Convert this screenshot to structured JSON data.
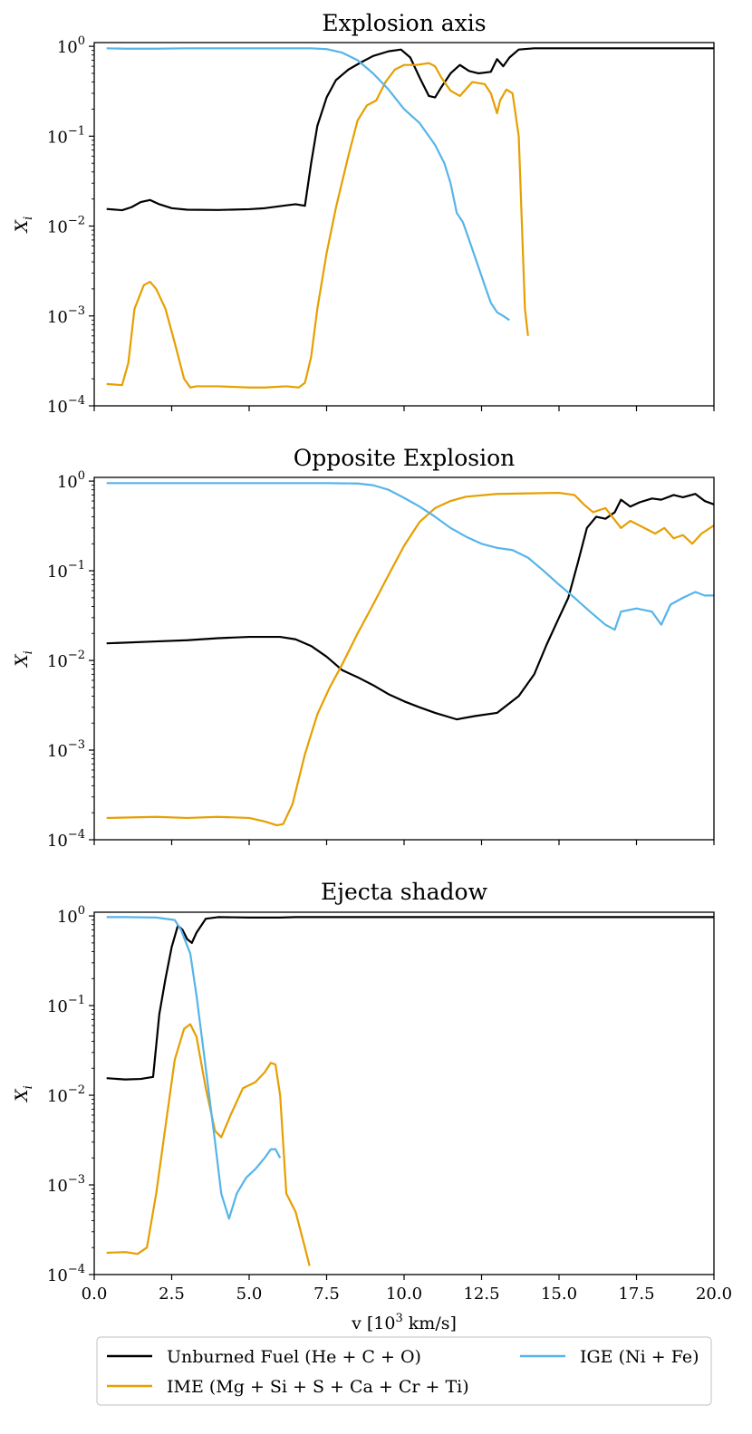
{
  "chart_data": {
    "type": "line",
    "x_axis_label_parts": {
      "base": "v [10",
      "sup": "3",
      "rest": " km/s]"
    },
    "y_axis_label": {
      "base": "X",
      "sub": "i"
    },
    "xlim": [
      0,
      20
    ],
    "ylim": [
      0.0001,
      1.1
    ],
    "yscale": "log",
    "x_ticks": [
      0,
      2.5,
      5,
      7.5,
      10,
      12.5,
      15,
      17.5,
      20
    ],
    "x_tick_labels": [
      "0.0",
      "2.5",
      "5.0",
      "7.5",
      "10.0",
      "12.5",
      "15.0",
      "17.5",
      "20.0"
    ],
    "y_ticks": [
      0.0001,
      0.001,
      0.01,
      0.1,
      1
    ],
    "y_tick_labels": [
      {
        "base": "10",
        "sup": "−4"
      },
      {
        "base": "10",
        "sup": "−3"
      },
      {
        "base": "10",
        "sup": "−2"
      },
      {
        "base": "10",
        "sup": "−1"
      },
      {
        "base": "10",
        "sup": "0"
      }
    ],
    "legend": {
      "placement": "bottom-center",
      "columns": 2,
      "entries": [
        {
          "label": "Unburned Fuel (He + C + O)",
          "color": "#000000"
        },
        {
          "label": "IME (Mg + Si + S + Ca + Cr + Ti)",
          "color": "#E69F00"
        },
        {
          "label": "IGE (Ni + Fe)",
          "color": "#56B4E9"
        }
      ]
    },
    "panels": [
      {
        "title": "Explosion axis",
        "series": [
          {
            "name": "Unburned Fuel (He + C + O)",
            "color": "#000000",
            "x": [
              0.4,
              0.9,
              1.2,
              1.5,
              1.8,
              2.1,
              2.5,
              3,
              4,
              5,
              5.5,
              6.2,
              6.5,
              6.8,
              7.0,
              7.2,
              7.5,
              7.8,
              8.2,
              8.6,
              9.0,
              9.5,
              9.9,
              10.2,
              10.5,
              10.8,
              11.0,
              11.2,
              11.5,
              11.8,
              12.1,
              12.4,
              12.8,
              13.0,
              13.2,
              13.4,
              13.7,
              14.2,
              15,
              16,
              18,
              20
            ],
            "y": [
              0.0155,
              0.015,
              0.0162,
              0.0185,
              0.0195,
              0.0175,
              0.0158,
              0.0152,
              0.0151,
              0.0154,
              0.0158,
              0.017,
              0.0175,
              0.0168,
              0.05,
              0.13,
              0.27,
              0.42,
              0.55,
              0.66,
              0.78,
              0.88,
              0.92,
              0.75,
              0.45,
              0.28,
              0.27,
              0.35,
              0.5,
              0.62,
              0.53,
              0.5,
              0.52,
              0.72,
              0.6,
              0.75,
              0.92,
              0.95,
              0.95,
              0.95,
              0.95,
              0.95
            ]
          },
          {
            "name": "IME (Mg + Si + S + Ca + Cr + Ti)",
            "color": "#E69F00",
            "x": [
              0.4,
              0.9,
              1.1,
              1.3,
              1.6,
              1.8,
              2.0,
              2.3,
              2.6,
              2.9,
              3.1,
              3.3,
              4.0,
              5.0,
              5.5,
              6.2,
              6.6,
              6.8,
              7.0,
              7.2,
              7.5,
              7.8,
              8.2,
              8.5,
              8.8,
              9.1,
              9.4,
              9.7,
              10.0,
              10.4,
              10.8,
              11.0,
              11.2,
              11.5,
              11.8,
              12.2,
              12.6,
              12.8,
              13.0,
              13.1,
              13.3,
              13.5,
              13.7,
              13.9,
              14.0
            ],
            "y": [
              0.000175,
              0.00017,
              0.0003,
              0.0012,
              0.0022,
              0.0024,
              0.002,
              0.0012,
              0.0005,
              0.0002,
              0.00016,
              0.000165,
              0.000165,
              0.00016,
              0.00016,
              0.000165,
              0.00016,
              0.00018,
              0.00035,
              0.0012,
              0.005,
              0.016,
              0.06,
              0.15,
              0.22,
              0.25,
              0.4,
              0.55,
              0.62,
              0.62,
              0.65,
              0.6,
              0.45,
              0.32,
              0.28,
              0.4,
              0.38,
              0.3,
              0.18,
              0.25,
              0.33,
              0.3,
              0.1,
              0.0012,
              0.0006
            ]
          },
          {
            "name": "IGE (Ni + Fe)",
            "color": "#56B4E9",
            "x": [
              0.4,
              1,
              2,
              3,
              4,
              5,
              6,
              7,
              7.5,
              8,
              8.5,
              9,
              9.5,
              10,
              10.5,
              11,
              11.3,
              11.5,
              11.7,
              11.9,
              12.1,
              12.4,
              12.6,
              12.8,
              13.0,
              13.2,
              13.4
            ],
            "y": [
              0.95,
              0.94,
              0.94,
              0.95,
              0.95,
              0.95,
              0.95,
              0.95,
              0.93,
              0.85,
              0.7,
              0.5,
              0.33,
              0.2,
              0.14,
              0.08,
              0.05,
              0.03,
              0.014,
              0.011,
              0.007,
              0.0035,
              0.0022,
              0.0014,
              0.0011,
              0.001,
              0.0009
            ]
          }
        ]
      },
      {
        "title": "Opposite Explosion",
        "series": [
          {
            "name": "Unburned Fuel (He + C + O)",
            "color": "#000000",
            "x": [
              0.4,
              2,
              3,
              4,
              5,
              6,
              6.5,
              7,
              7.5,
              8,
              8.5,
              9,
              9.5,
              10,
              10.5,
              11,
              11.7,
              12.3,
              13,
              13.7,
              14.2,
              14.6,
              15,
              15.3,
              15.6,
              15.9,
              16.2,
              16.5,
              16.8,
              17.0,
              17.3,
              17.6,
              18.0,
              18.3,
              18.7,
              19.0,
              19.4,
              19.7,
              20
            ],
            "y": [
              0.0155,
              0.0163,
              0.0168,
              0.0177,
              0.0183,
              0.0183,
              0.0172,
              0.0145,
              0.011,
              0.0078,
              0.0065,
              0.0053,
              0.0042,
              0.0035,
              0.003,
              0.0026,
              0.0022,
              0.0024,
              0.0026,
              0.004,
              0.007,
              0.015,
              0.03,
              0.05,
              0.12,
              0.3,
              0.4,
              0.38,
              0.45,
              0.62,
              0.52,
              0.58,
              0.64,
              0.62,
              0.7,
              0.66,
              0.72,
              0.6,
              0.55
            ]
          },
          {
            "name": "IME (Mg + Si + S + Ca + Cr + Ti)",
            "color": "#E69F00",
            "x": [
              0.4,
              2,
              3,
              4,
              5,
              5.5,
              5.9,
              6.1,
              6.4,
              6.8,
              7.2,
              7.6,
              8,
              8.5,
              9,
              9.5,
              10,
              10.5,
              11,
              11.5,
              12,
              13,
              14,
              15,
              15.5,
              15.8,
              16.1,
              16.5,
              17.0,
              17.3,
              17.6,
              18.1,
              18.4,
              18.7,
              19.0,
              19.3,
              19.6,
              20
            ],
            "y": [
              0.000175,
              0.00018,
              0.000175,
              0.00018,
              0.000175,
              0.00016,
              0.000145,
              0.00015,
              0.00025,
              0.0009,
              0.0025,
              0.005,
              0.009,
              0.02,
              0.042,
              0.09,
              0.19,
              0.35,
              0.5,
              0.6,
              0.67,
              0.72,
              0.73,
              0.74,
              0.7,
              0.55,
              0.45,
              0.5,
              0.3,
              0.36,
              0.32,
              0.26,
              0.3,
              0.23,
              0.25,
              0.2,
              0.26,
              0.32
            ]
          },
          {
            "name": "IGE (Ni + Fe)",
            "color": "#56B4E9",
            "x": [
              0.4,
              2,
              4,
              6,
              7.5,
              8.5,
              9,
              9.5,
              10,
              10.5,
              11,
              11.5,
              12,
              12.5,
              13,
              13.5,
              14,
              14.5,
              15,
              15.5,
              16,
              16.5,
              16.8,
              17.0,
              17.5,
              18.0,
              18.3,
              18.6,
              19.0,
              19.4,
              19.7,
              20
            ],
            "y": [
              0.95,
              0.95,
              0.95,
              0.95,
              0.95,
              0.94,
              0.9,
              0.8,
              0.65,
              0.52,
              0.4,
              0.3,
              0.24,
              0.2,
              0.18,
              0.17,
              0.14,
              0.1,
              0.07,
              0.05,
              0.035,
              0.025,
              0.022,
              0.035,
              0.038,
              0.035,
              0.025,
              0.042,
              0.05,
              0.058,
              0.053,
              0.053
            ]
          }
        ]
      },
      {
        "title": "Ejecta shadow",
        "series": [
          {
            "name": "Unburned Fuel (He + C + O)",
            "color": "#000000",
            "x": [
              0.4,
              1,
              1.5,
              1.9,
              2.1,
              2.3,
              2.5,
              2.7,
              2.85,
              3.0,
              3.15,
              3.3,
              3.6,
              4.0,
              5,
              6,
              6.5,
              8,
              10,
              15,
              20
            ],
            "y": [
              0.0155,
              0.015,
              0.0152,
              0.016,
              0.08,
              0.2,
              0.45,
              0.78,
              0.7,
              0.55,
              0.5,
              0.65,
              0.93,
              0.97,
              0.96,
              0.96,
              0.97,
              0.97,
              0.97,
              0.97,
              0.97
            ]
          },
          {
            "name": "IME (Mg + Si + S + Ca + Cr + Ti)",
            "color": "#E69F00",
            "x": [
              0.4,
              1,
              1.4,
              1.7,
              2.0,
              2.3,
              2.6,
              2.9,
              3.1,
              3.3,
              3.6,
              3.9,
              4.1,
              4.4,
              4.8,
              5.2,
              5.5,
              5.7,
              5.85,
              6.0,
              6.2,
              6.5,
              6.8,
              6.95
            ],
            "y": [
              0.000175,
              0.000178,
              0.00017,
              0.0002,
              0.0008,
              0.0045,
              0.025,
              0.055,
              0.062,
              0.045,
              0.012,
              0.004,
              0.0034,
              0.006,
              0.012,
              0.014,
              0.018,
              0.023,
              0.022,
              0.01,
              0.0008,
              0.0005,
              0.0002,
              0.000125
            ]
          },
          {
            "name": "IGE (Ni + Fe)",
            "color": "#56B4E9",
            "x": [
              0.4,
              1,
              2,
              2.6,
              2.8,
              3.1,
              3.3,
              3.6,
              3.9,
              4.1,
              4.35,
              4.6,
              4.9,
              5.2,
              5.5,
              5.7,
              5.85,
              6.0
            ],
            "y": [
              0.97,
              0.97,
              0.96,
              0.9,
              0.7,
              0.38,
              0.13,
              0.02,
              0.003,
              0.0008,
              0.00042,
              0.0008,
              0.0012,
              0.0015,
              0.002,
              0.0025,
              0.0025,
              0.002
            ]
          }
        ]
      }
    ]
  }
}
